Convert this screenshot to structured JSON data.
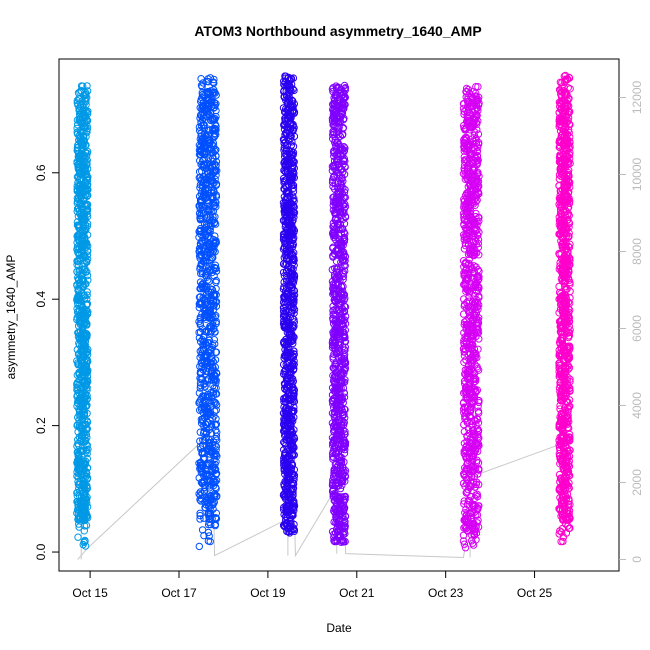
{
  "chart_data": {
    "type": "scatter",
    "title": "ATOM3 Northbound asymmetry_1640_AMP",
    "xlabel": "Date",
    "ylabel": "asymmetry_1640_AMP",
    "x_tick_labels": [
      "Oct 15",
      "Oct 17",
      "Oct 19",
      "Oct 21",
      "Oct 23",
      "Oct 25"
    ],
    "x_tick_days": [
      15,
      17,
      19,
      21,
      23,
      25
    ],
    "xlim_days": [
      14.3,
      26.9
    ],
    "ylim": [
      -0.03,
      0.78
    ],
    "y_ticks": [
      0.0,
      0.2,
      0.4,
      0.6
    ],
    "y_tick_labels": [
      "0.0",
      "0.2",
      "0.4",
      "0.6"
    ],
    "right_ylim": [
      -300,
      13000
    ],
    "right_ticks": [
      0,
      2000,
      4000,
      6000,
      8000,
      10000,
      12000
    ],
    "right_tick_labels": [
      "0",
      "2000",
      "4000",
      "6000",
      "8000",
      "10000",
      "12000"
    ],
    "grid": false,
    "legend": "none",
    "point_clusters": [
      {
        "day_start": 14.7,
        "day_end": 14.95,
        "ymin": 0.0,
        "ymax": 0.74,
        "color": "#0099e6",
        "dense_low": 0.05,
        "dense_high": 0.72
      },
      {
        "day_start": 17.45,
        "day_end": 17.85,
        "ymin": 0.005,
        "ymax": 0.755,
        "color": "#0050ff",
        "dense_low": 0.05,
        "dense_high": 0.73
      },
      {
        "day_start": 19.35,
        "day_end": 19.6,
        "ymin": 0.03,
        "ymax": 0.755,
        "color": "#2a00f0",
        "dense_low": 0.04,
        "dense_high": 0.74
      },
      {
        "day_start": 20.45,
        "day_end": 20.75,
        "ymin": 0.015,
        "ymax": 0.74,
        "color": "#8000ff",
        "dense_low": 0.02,
        "dense_high": 0.73
      },
      {
        "day_start": 23.4,
        "day_end": 23.75,
        "ymin": 0.005,
        "ymax": 0.74,
        "color": "#d600f5",
        "dense_low": 0.03,
        "dense_high": 0.72
      },
      {
        "day_start": 25.55,
        "day_end": 25.8,
        "ymin": 0.015,
        "ymax": 0.755,
        "color": "#ff00cc",
        "dense_low": 0.05,
        "dense_high": 0.74
      }
    ],
    "cumulative_count_line": {
      "color": "#c8c8c8",
      "points": [
        [
          14.72,
          0
        ],
        [
          14.95,
          300
        ],
        [
          17.45,
          3000
        ],
        [
          17.75,
          3100
        ],
        [
          17.8,
          100
        ],
        [
          19.35,
          1000
        ],
        [
          19.6,
          1010
        ],
        [
          19.62,
          100
        ],
        [
          20.45,
          1700
        ],
        [
          20.7,
          1720
        ],
        [
          20.75,
          150
        ],
        [
          23.4,
          50
        ],
        [
          23.7,
          2200
        ],
        [
          25.6,
          3000
        ],
        [
          25.8,
          3100
        ]
      ],
      "vertical_segments": [
        {
          "day": 14.8,
          "low": 0,
          "high": 4200
        },
        {
          "day": 17.6,
          "low": 1000,
          "high": 3000
        },
        {
          "day": 19.45,
          "low": 100,
          "high": 1000
        },
        {
          "day": 20.55,
          "low": 150,
          "high": 1700
        },
        {
          "day": 23.55,
          "low": 50,
          "high": 2200
        },
        {
          "day": 25.7,
          "low": 400,
          "high": 3100
        }
      ]
    }
  }
}
